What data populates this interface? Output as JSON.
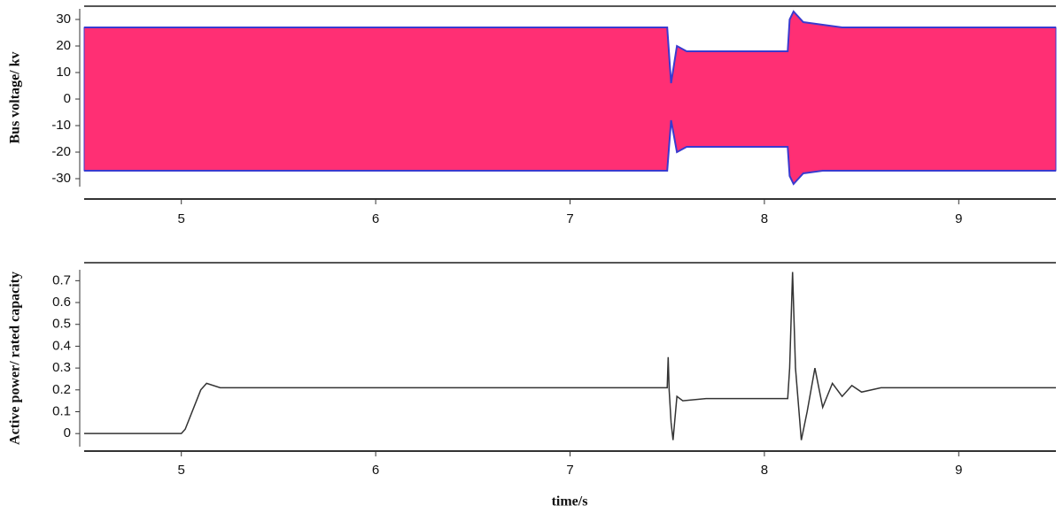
{
  "chart_data": [
    {
      "type": "band",
      "ylabel": "Bus voltage/ kv",
      "color": "#ff2f74",
      "edge_color": "#3a3acf",
      "x": [
        4.5,
        5,
        5.5,
        6,
        6.5,
        7,
        7.49,
        7.5,
        7.52,
        7.55,
        7.6,
        7.7,
        8,
        8.12,
        8.13,
        8.15,
        8.2,
        8.3,
        8.4,
        8.5,
        9,
        9.5
      ],
      "series": [
        {
          "color": "#3a3acf",
          "values": [
            27,
            27,
            27,
            27,
            27,
            27,
            27,
            27,
            6,
            20,
            18,
            18,
            18,
            18,
            30,
            33,
            29,
            28,
            27,
            27,
            27,
            27
          ]
        },
        {
          "color": "#3a3acf",
          "values": [
            -27,
            -27,
            -27,
            -27,
            -27,
            -27,
            -27,
            -27,
            -8,
            -20,
            -18,
            -18,
            -18,
            -18,
            -29,
            -32,
            -28,
            -27,
            -27,
            -27,
            -27,
            -27
          ]
        }
      ],
      "xlim": [
        4.5,
        9.5
      ],
      "xticks": [
        5,
        6,
        7,
        8,
        9
      ],
      "ylim": [
        -33,
        34
      ],
      "yticks": [
        -30,
        -20,
        -10,
        0,
        10,
        20,
        30
      ]
    },
    {
      "type": "line",
      "ylabel": "Active power/ rated capacity",
      "xlabel": "time/s",
      "color": "#333333",
      "x": [
        4.5,
        5.0,
        5.02,
        5.1,
        5.13,
        5.2,
        7.5,
        7.505,
        7.51,
        7.52,
        7.53,
        7.55,
        7.58,
        7.7,
        8.0,
        8.12,
        8.13,
        8.145,
        8.16,
        8.19,
        8.22,
        8.26,
        8.3,
        8.35,
        8.4,
        8.45,
        8.5,
        8.6,
        9.5
      ],
      "values": [
        0,
        0,
        0.02,
        0.2,
        0.23,
        0.21,
        0.21,
        0.35,
        0.2,
        0.05,
        -0.03,
        0.17,
        0.15,
        0.16,
        0.16,
        0.16,
        0.3,
        0.74,
        0.3,
        -0.03,
        0.1,
        0.3,
        0.12,
        0.23,
        0.17,
        0.22,
        0.19,
        0.21,
        0.21
      ],
      "xlim": [
        4.5,
        9.5
      ],
      "xticks": [
        5,
        6,
        7,
        8,
        9
      ],
      "ylim": [
        -0.06,
        0.75
      ],
      "yticks": [
        0,
        0.1,
        0.2,
        0.3,
        0.4,
        0.5,
        0.6,
        0.7
      ]
    }
  ]
}
